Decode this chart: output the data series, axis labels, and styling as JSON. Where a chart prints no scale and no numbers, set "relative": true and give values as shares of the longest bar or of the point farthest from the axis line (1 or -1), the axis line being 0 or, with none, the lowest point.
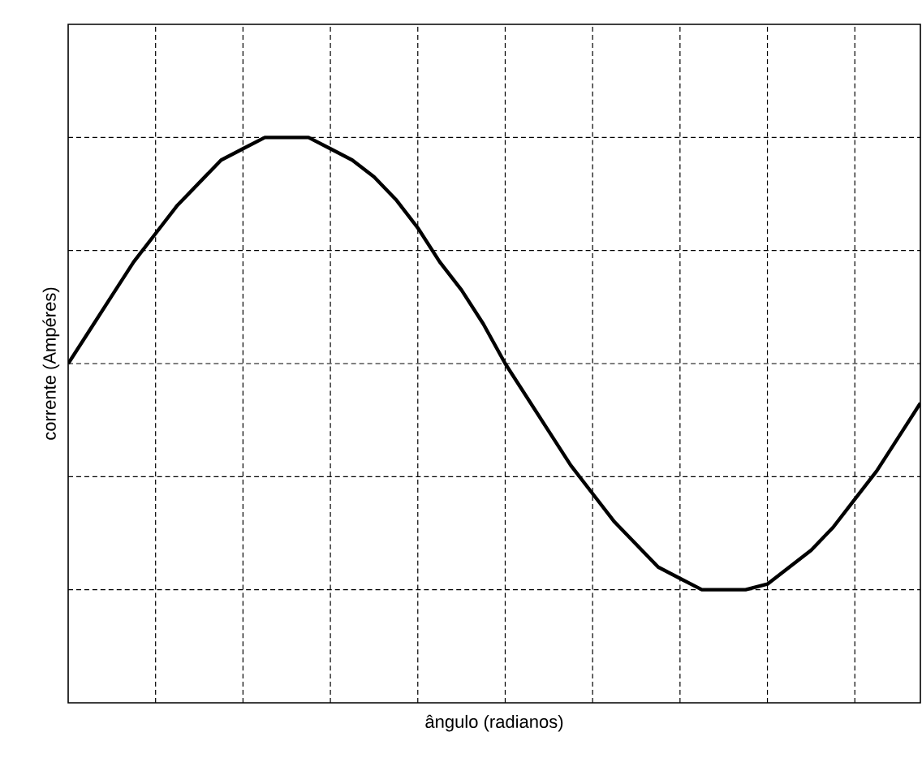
{
  "chart_data": {
    "type": "line",
    "xlabel": "ângulo (radianos)",
    "ylabel": "corrente (Ampéres)",
    "categories": [
      null,
      null,
      null,
      null,
      null,
      null,
      null,
      null,
      null,
      null,
      null,
      null,
      null,
      null,
      null,
      null,
      null,
      null,
      null,
      null,
      null,
      null,
      null,
      null,
      null,
      null,
      null,
      null,
      null,
      null,
      null,
      null,
      null,
      null,
      null,
      null,
      null,
      null,
      null,
      null
    ],
    "series": [
      {
        "color": "#000000",
        "values": [
          0.6,
          0.66,
          0.72,
          0.78,
          0.83,
          0.88,
          0.92,
          0.96,
          0.98,
          1.0,
          1.0,
          1.0,
          0.98,
          0.96,
          0.93,
          0.89,
          0.84,
          0.78,
          0.73,
          0.67,
          0.6,
          0.54,
          0.48,
          0.42,
          0.37,
          0.32,
          0.28,
          0.24,
          0.22,
          0.2,
          0.2,
          0.2,
          0.21,
          0.24,
          0.27,
          0.31,
          0.36,
          0.41,
          0.47,
          0.53
        ]
      }
    ],
    "relative": true,
    "grid": true,
    "tick_labels": false,
    "line_style": "solid",
    "marker": "none"
  }
}
